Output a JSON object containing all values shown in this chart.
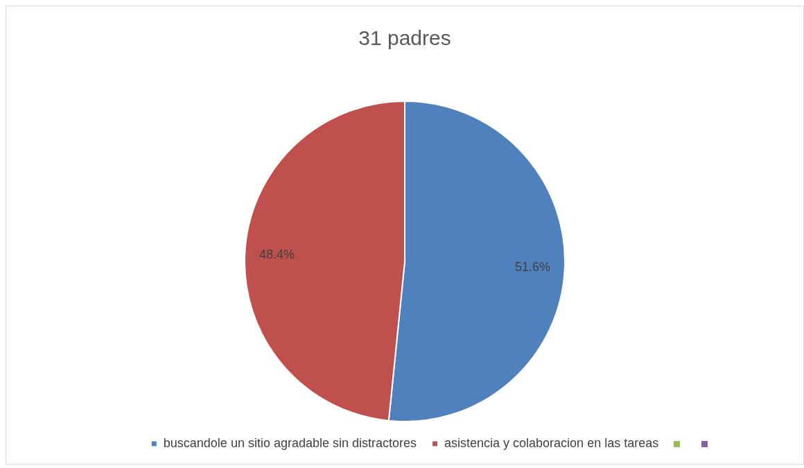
{
  "chart_data": {
    "type": "pie",
    "title": "31 padres",
    "categories": [
      "buscandole un sitio agradable sin distractores",
      "asistencia y colaboracion en las tareas",
      null,
      null
    ],
    "values": [
      51.6,
      48.4,
      0,
      0
    ],
    "colors": [
      "#4f81bd",
      "#c0504d",
      "#9bbb59",
      "#8064a2"
    ],
    "value_labels": [
      "51.6%",
      "48.4%",
      null,
      null
    ],
    "legend": "bottom"
  }
}
